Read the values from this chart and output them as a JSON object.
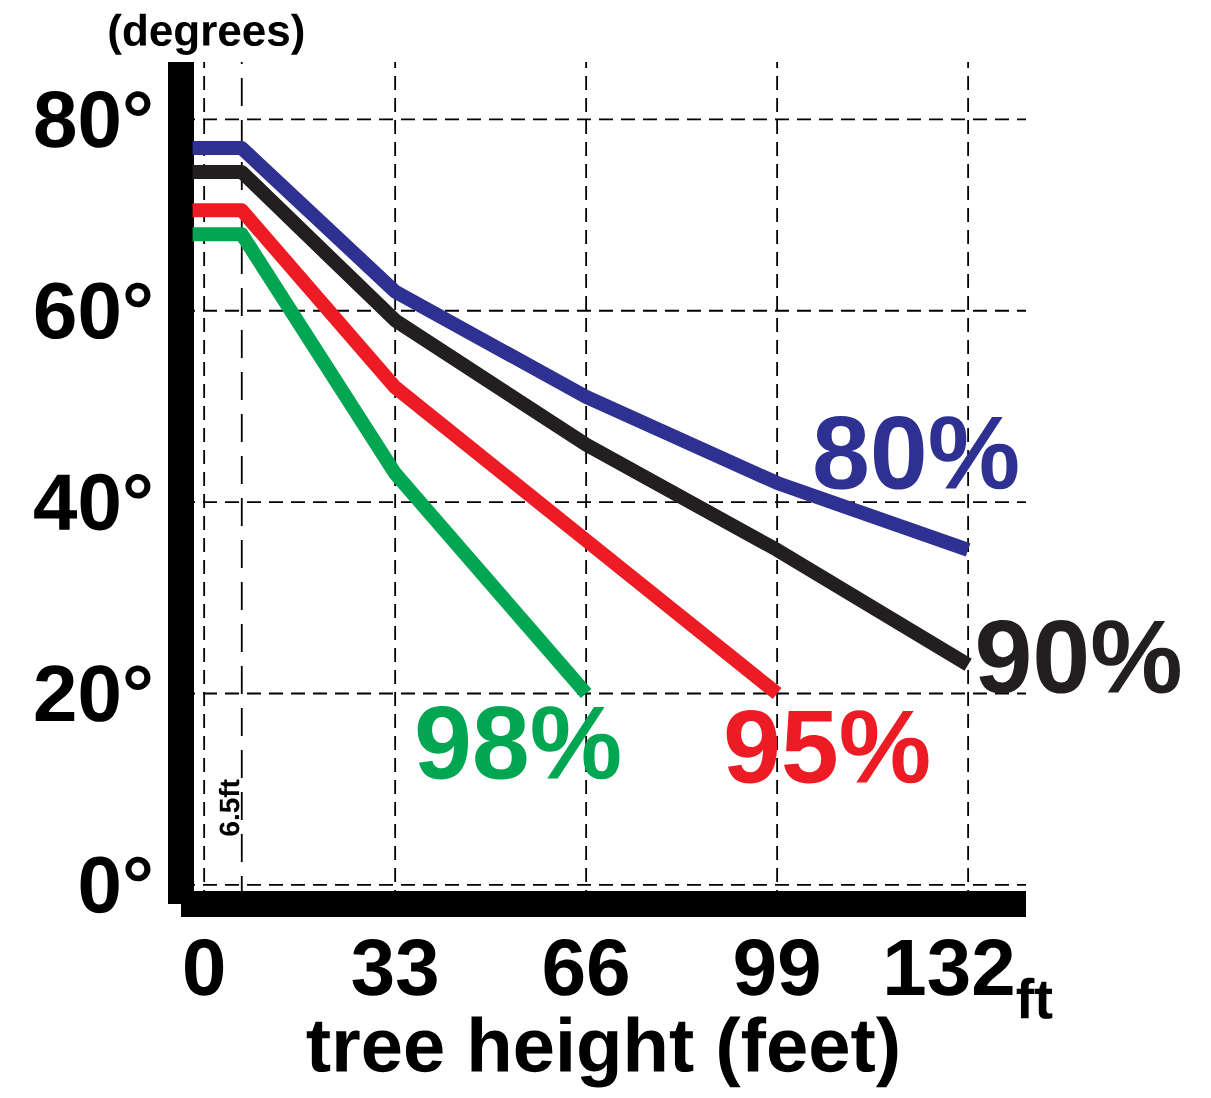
{
  "chart_data": {
    "type": "line",
    "xlabel": "tree height (feet)",
    "ylabel": "(degrees)",
    "xlim": [
      -4,
      142
    ],
    "ylim": [
      -2,
      86
    ],
    "xticks": [
      0,
      33,
      66,
      99,
      {
        "value": 132,
        "label": "132$_{ft}$"
      }
    ],
    "yticks": [
      {
        "value": 0,
        "label": "0°"
      },
      {
        "value": 20,
        "label": "20°"
      },
      {
        "value": 40,
        "label": "40°"
      },
      {
        "value": 60,
        "label": "60°"
      },
      {
        "value": 80,
        "label": "80°"
      }
    ],
    "grid": true,
    "ref_lines": [
      {
        "axis": "x",
        "value": 6.5,
        "label": "6.5ft",
        "line_style": "dashed"
      }
    ],
    "series": [
      {
        "name": "80%",
        "color": "#2e3192",
        "x": [
          -2,
          6.5,
          33,
          66,
          99,
          132
        ],
        "values": [
          77,
          77,
          62,
          51,
          42,
          35
        ]
      },
      {
        "name": "90%",
        "color": "#231f20",
        "x": [
          -2,
          6.5,
          33,
          66,
          99,
          132
        ],
        "values": [
          74.5,
          74.5,
          59,
          46,
          35,
          23
        ]
      },
      {
        "name": "95%",
        "color": "#ed1c24",
        "x": [
          -2,
          6.5,
          33,
          66,
          99
        ],
        "values": [
          70.5,
          70.5,
          52,
          36,
          20
        ]
      },
      {
        "name": "98%",
        "color": "#00a651",
        "x": [
          -2,
          6.5,
          33,
          66
        ],
        "values": [
          68,
          68,
          43,
          20
        ]
      }
    ]
  }
}
